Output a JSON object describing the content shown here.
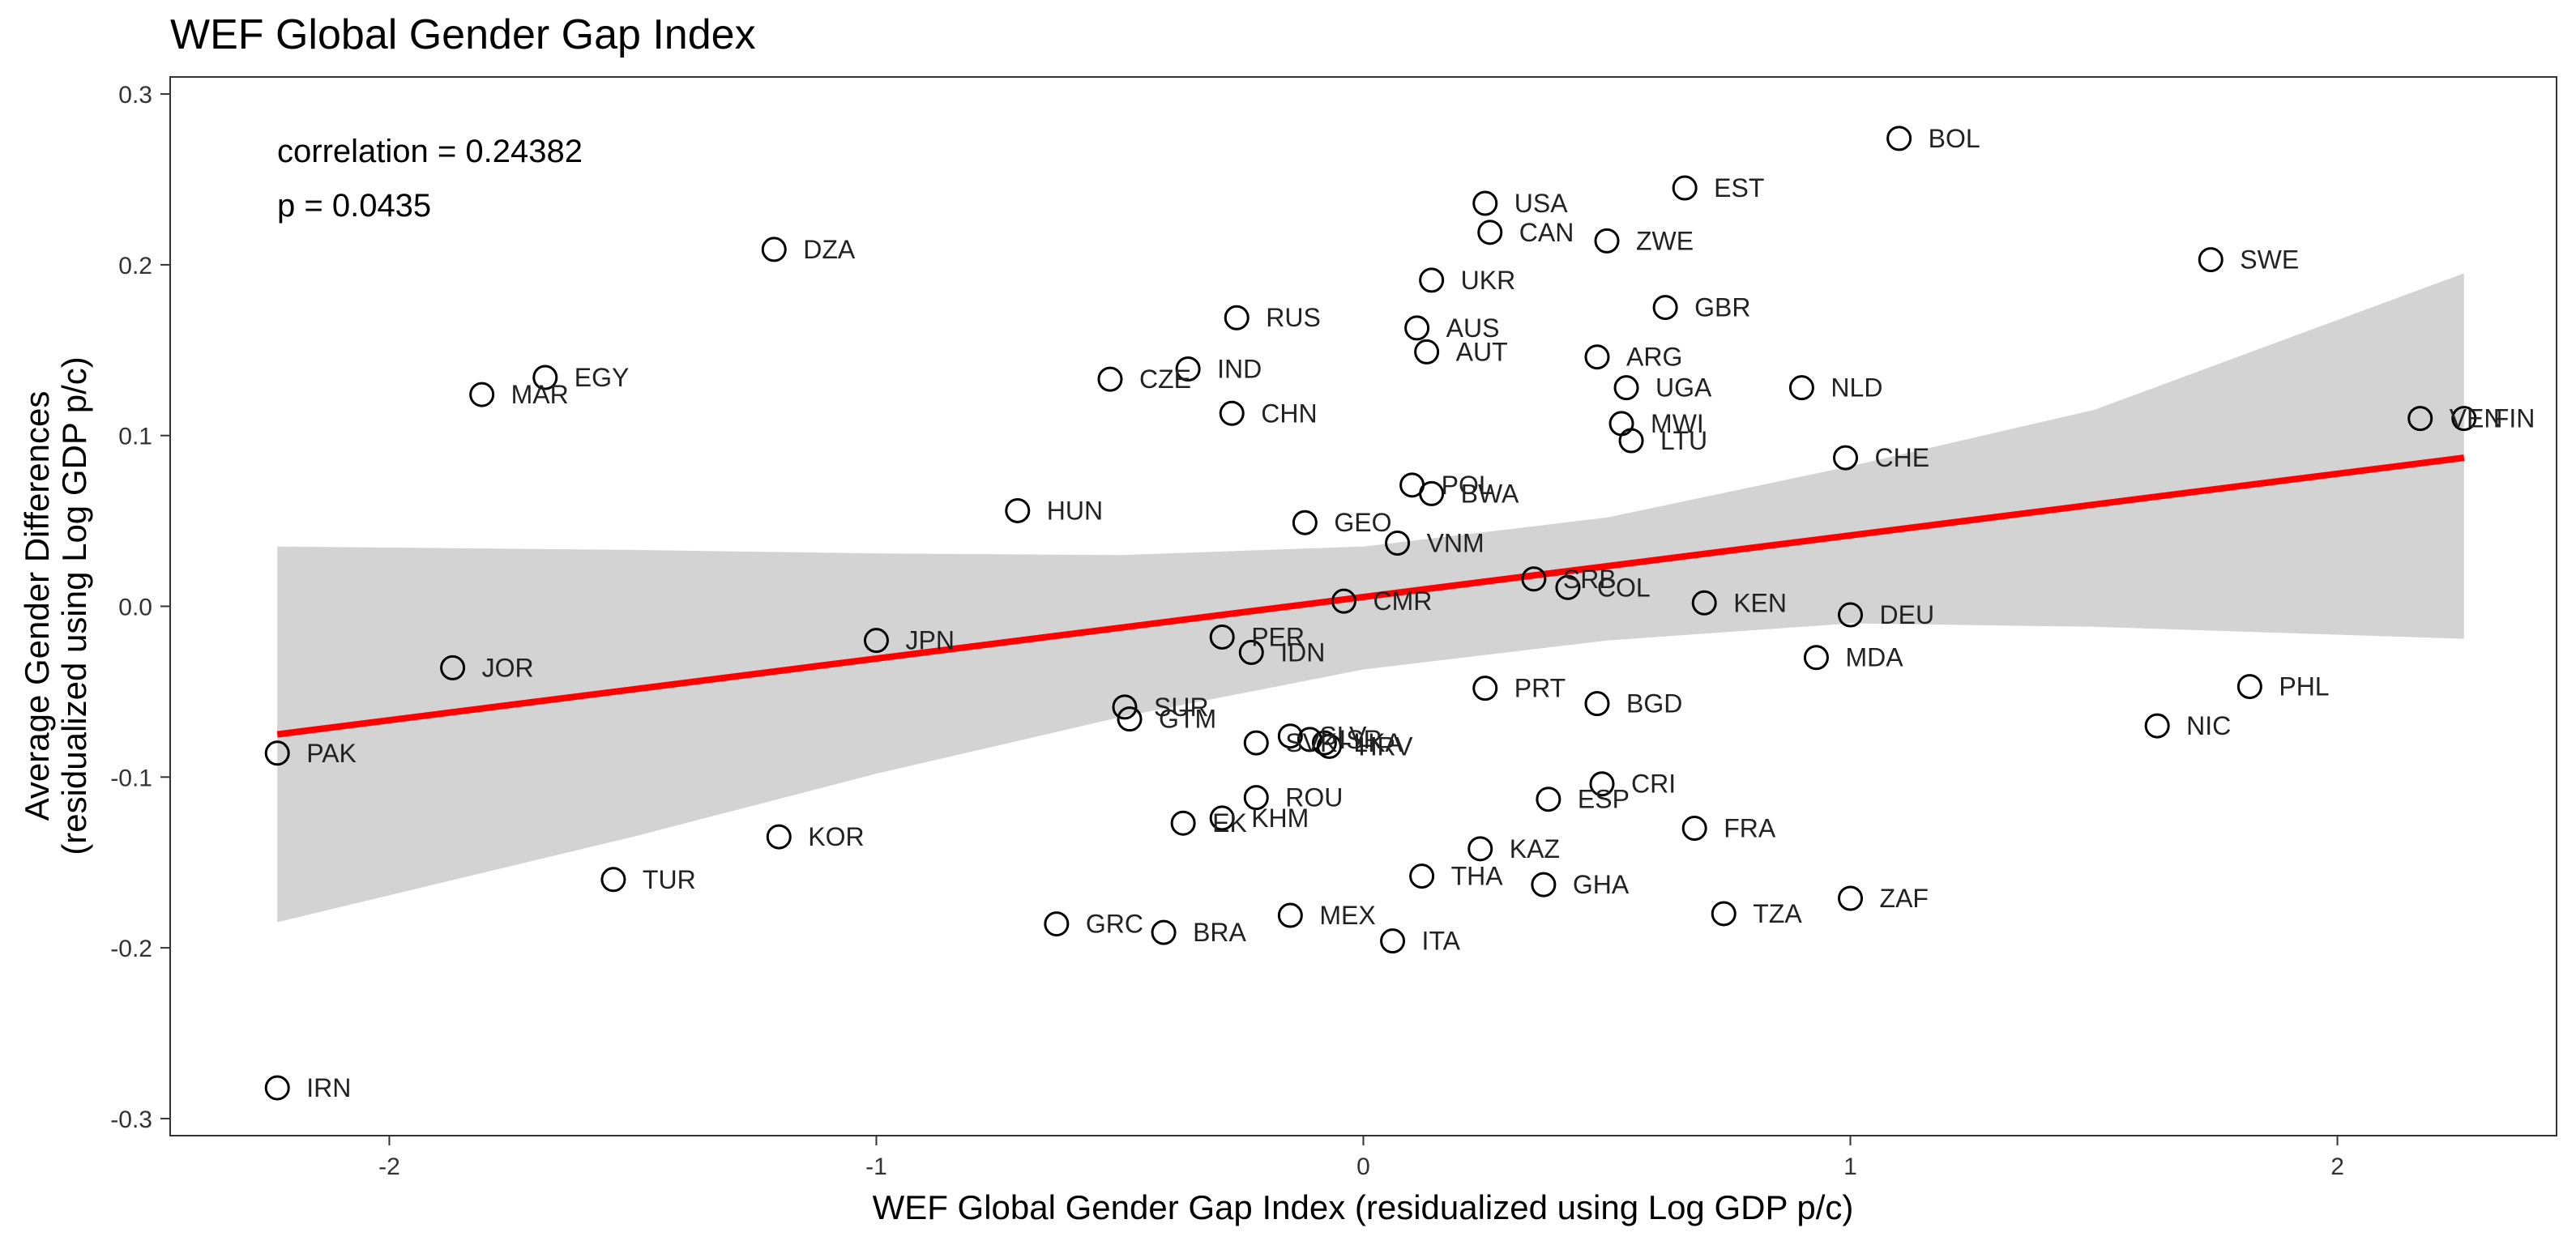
{
  "chart_data": {
    "type": "scatter",
    "title": "WEF Global Gender Gap Index",
    "xlabel": "WEF Global Gender Gap Index (residualized using Log GDP p/c)",
    "ylabel_lines": [
      "Average Gender Differences",
      "(residualized using Log GDP p/c)"
    ],
    "xlim": [
      -2.45,
      2.45
    ],
    "ylim": [
      -0.31,
      0.31
    ],
    "x_ticks": [
      -2,
      -1,
      0,
      1,
      2
    ],
    "y_ticks": [
      -0.3,
      -0.2,
      -0.1,
      0.0,
      0.1,
      0.2,
      0.3
    ],
    "x_tick_labels": [
      "-2",
      "-1",
      "0",
      "1",
      "2"
    ],
    "y_tick_labels": [
      "-0.3",
      "-0.2",
      "-0.1",
      "0.0",
      "0.1",
      "0.2",
      "0.3"
    ],
    "grid": false,
    "annotations": [
      "correlation = 0.24382",
      "p = 0.0435"
    ],
    "regression": {
      "color": "#ff0000",
      "line": [
        [
          -2.23,
          -0.075
        ],
        [
          2.26,
          0.087
        ]
      ],
      "band_x": [
        -2.23,
        -1.5,
        -1.0,
        -0.5,
        0.0,
        0.5,
        1.0,
        1.5,
        2.26
      ],
      "band_upper": [
        0.035,
        0.033,
        0.031,
        0.03,
        0.035,
        0.052,
        0.082,
        0.115,
        0.195
      ],
      "band_lower": [
        -0.185,
        -0.135,
        -0.098,
        -0.065,
        -0.037,
        -0.02,
        -0.01,
        -0.012,
        -0.019
      ],
      "band_color": "#d3d3d3"
    },
    "points": [
      {
        "label": "BOL",
        "x": 1.1,
        "y": 0.274
      },
      {
        "label": "EST",
        "x": 0.66,
        "y": 0.245
      },
      {
        "label": "USA",
        "x": 0.25,
        "y": 0.236
      },
      {
        "label": "CAN",
        "x": 0.26,
        "y": 0.219
      },
      {
        "label": "ZWE",
        "x": 0.5,
        "y": 0.214
      },
      {
        "label": "DZA",
        "x": -1.21,
        "y": 0.209
      },
      {
        "label": "SWE",
        "x": 1.74,
        "y": 0.203
      },
      {
        "label": "UKR",
        "x": 0.14,
        "y": 0.191
      },
      {
        "label": "GBR",
        "x": 0.62,
        "y": 0.175
      },
      {
        "label": "RUS",
        "x": -0.26,
        "y": 0.169
      },
      {
        "label": "AUS",
        "x": 0.11,
        "y": 0.163
      },
      {
        "label": "AUT",
        "x": 0.13,
        "y": 0.149
      },
      {
        "label": "ARG",
        "x": 0.48,
        "y": 0.146
      },
      {
        "label": "IND",
        "x": -0.36,
        "y": 0.139
      },
      {
        "label": "EGY",
        "x": -1.68,
        "y": 0.134
      },
      {
        "label": "CZE",
        "x": -0.52,
        "y": 0.133
      },
      {
        "label": "UGA",
        "x": 0.54,
        "y": 0.128
      },
      {
        "label": "NLD",
        "x": 0.9,
        "y": 0.128
      },
      {
        "label": "MAR",
        "x": -1.81,
        "y": 0.124
      },
      {
        "label": "CHN",
        "x": -0.27,
        "y": 0.113
      },
      {
        "label": "VEN",
        "x": 2.17,
        "y": 0.11
      },
      {
        "label": "FIN",
        "x": 2.26,
        "y": 0.11
      },
      {
        "label": "MWI",
        "x": 0.53,
        "y": 0.107
      },
      {
        "label": "LTU",
        "x": 0.55,
        "y": 0.097
      },
      {
        "label": "CHE",
        "x": 0.99,
        "y": 0.087
      },
      {
        "label": "POL",
        "x": 0.1,
        "y": 0.071
      },
      {
        "label": "BWA",
        "x": 0.14,
        "y": 0.066
      },
      {
        "label": "HUN",
        "x": -0.71,
        "y": 0.056
      },
      {
        "label": "GEO",
        "x": -0.12,
        "y": 0.049
      },
      {
        "label": "VNM",
        "x": 0.07,
        "y": 0.037
      },
      {
        "label": "SRB",
        "x": 0.35,
        "y": 0.016
      },
      {
        "label": "COL",
        "x": 0.42,
        "y": 0.011
      },
      {
        "label": "CMR",
        "x": -0.04,
        "y": 0.003
      },
      {
        "label": "KEN",
        "x": 0.7,
        "y": 0.002
      },
      {
        "label": "DEU",
        "x": 1.0,
        "y": -0.005
      },
      {
        "label": "JPN",
        "x": -1.0,
        "y": -0.02
      },
      {
        "label": "PER",
        "x": -0.29,
        "y": -0.018
      },
      {
        "label": "IDN",
        "x": -0.23,
        "y": -0.027
      },
      {
        "label": "MDA",
        "x": 0.93,
        "y": -0.03
      },
      {
        "label": "JOR",
        "x": -1.87,
        "y": -0.036
      },
      {
        "label": "PHL",
        "x": 1.82,
        "y": -0.047
      },
      {
        "label": "PRT",
        "x": 0.25,
        "y": -0.048
      },
      {
        "label": "BGD",
        "x": 0.48,
        "y": -0.057
      },
      {
        "label": "SUR",
        "x": -0.49,
        "y": -0.059
      },
      {
        "label": "GTM",
        "x": -0.48,
        "y": -0.066
      },
      {
        "label": "NIC",
        "x": 1.63,
        "y": -0.07
      },
      {
        "label": "SLV",
        "x": -0.15,
        "y": -0.076
      },
      {
        "label": "ISR",
        "x": -0.11,
        "y": -0.078
      },
      {
        "label": "LKA",
        "x": -0.08,
        "y": -0.08
      },
      {
        "label": "HRV",
        "x": -0.07,
        "y": -0.082
      },
      {
        "label": "SVK",
        "x": -0.22,
        "y": -0.08
      },
      {
        "label": "PAK",
        "x": -2.23,
        "y": -0.086
      },
      {
        "label": "CRI",
        "x": 0.49,
        "y": -0.104
      },
      {
        "label": "ROU",
        "x": -0.22,
        "y": -0.112
      },
      {
        "label": "ESP",
        "x": 0.38,
        "y": -0.113
      },
      {
        "label": "KHM",
        "x": -0.29,
        "y": -0.124
      },
      {
        "label": "EK",
        "x": -0.37,
        "y": -0.127
      },
      {
        "label": "FRA",
        "x": 0.68,
        "y": -0.13
      },
      {
        "label": "KOR",
        "x": -1.2,
        "y": -0.135
      },
      {
        "label": "KAZ",
        "x": 0.24,
        "y": -0.142
      },
      {
        "label": "THA",
        "x": 0.12,
        "y": -0.158
      },
      {
        "label": "TUR",
        "x": -1.54,
        "y": -0.16
      },
      {
        "label": "GHA",
        "x": 0.37,
        "y": -0.163
      },
      {
        "label": "ZAF",
        "x": 1.0,
        "y": -0.171
      },
      {
        "label": "TZA",
        "x": 0.74,
        "y": -0.18
      },
      {
        "label": "MEX",
        "x": -0.15,
        "y": -0.181
      },
      {
        "label": "GRC",
        "x": -0.63,
        "y": -0.186
      },
      {
        "label": "BRA",
        "x": -0.41,
        "y": -0.191
      },
      {
        "label": "ITA",
        "x": 0.06,
        "y": -0.196
      },
      {
        "label": "IRN",
        "x": -2.23,
        "y": -0.282
      }
    ]
  }
}
